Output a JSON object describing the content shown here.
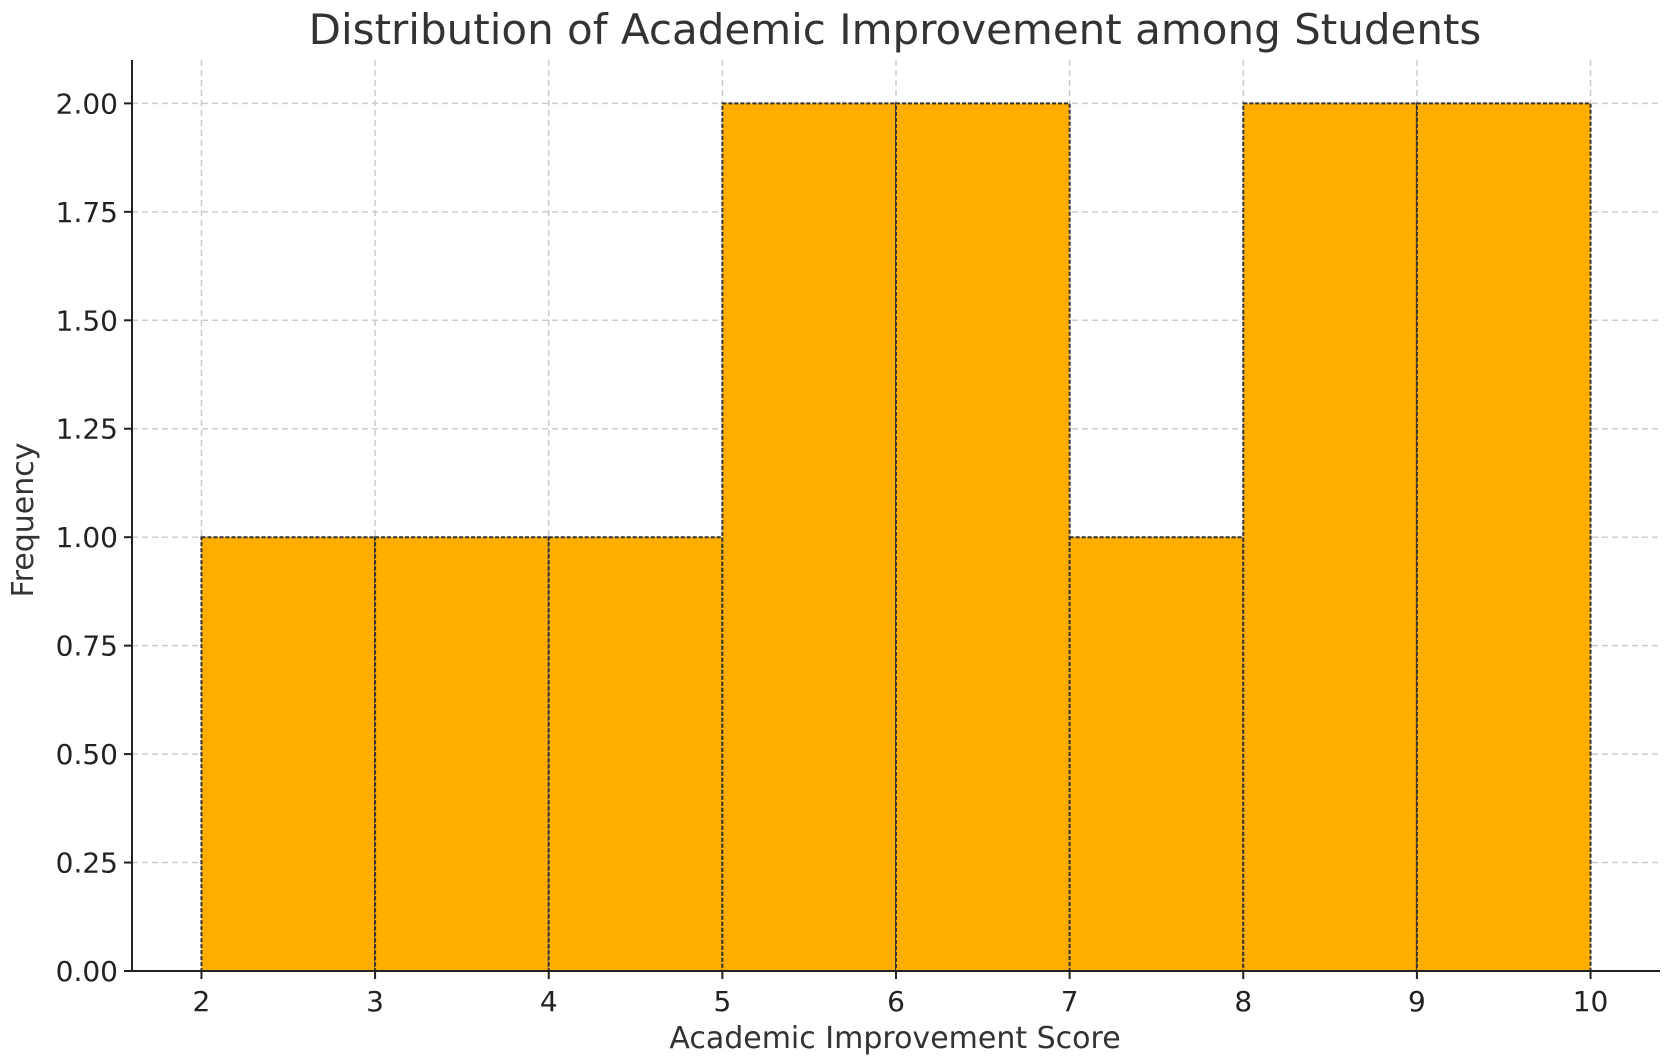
{
  "chart_data": {
    "type": "bar",
    "title": "Distribution of Academic Improvement among Students",
    "xlabel": "Academic Improvement Score",
    "ylabel": "Frequency",
    "bins": [
      {
        "start": 2,
        "end": 3,
        "value": 1
      },
      {
        "start": 3,
        "end": 4,
        "value": 1
      },
      {
        "start": 4,
        "end": 5,
        "value": 1
      },
      {
        "start": 5,
        "end": 6,
        "value": 2
      },
      {
        "start": 6,
        "end": 7,
        "value": 2
      },
      {
        "start": 7,
        "end": 8,
        "value": 1
      },
      {
        "start": 8,
        "end": 9,
        "value": 2
      },
      {
        "start": 9,
        "end": 10,
        "value": 2
      }
    ],
    "xticks": [
      "2",
      "3",
      "4",
      "5",
      "6",
      "7",
      "8",
      "9",
      "10"
    ],
    "xtick_values": [
      2,
      3,
      4,
      5,
      6,
      7,
      8,
      9,
      10
    ],
    "yticks": [
      "0.00",
      "0.25",
      "0.50",
      "0.75",
      "1.00",
      "1.25",
      "1.50",
      "1.75",
      "2.00"
    ],
    "ytick_values": [
      0,
      0.25,
      0.5,
      0.75,
      1.0,
      1.25,
      1.5,
      1.75,
      2.0
    ],
    "xlim": [
      1.6,
      10.4
    ],
    "ylim": [
      0,
      2.1
    ],
    "grid": true,
    "bar_color": "#ffae00",
    "edge_color": "#333333"
  }
}
